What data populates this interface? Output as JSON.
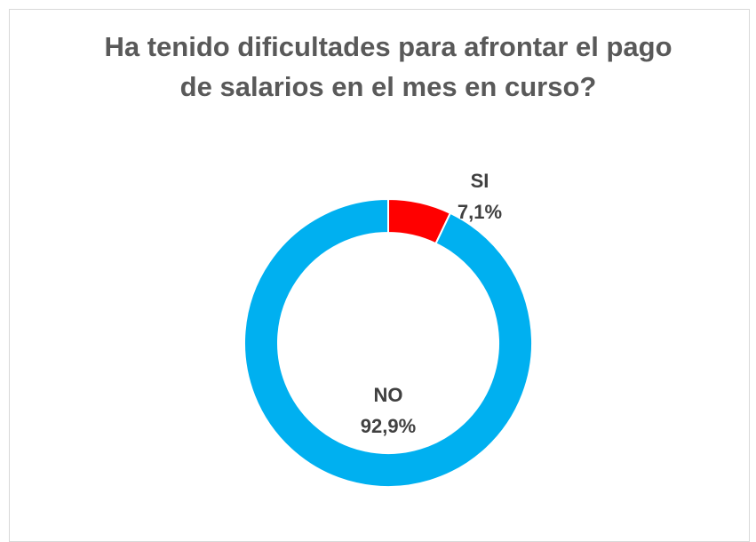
{
  "chart_data": {
    "type": "donut",
    "title": "Ha tenido dificultades para afrontar el pago de salarios en el mes en curso?",
    "categories": [
      "SI",
      "NO"
    ],
    "values": [
      7.1,
      92.9
    ],
    "value_labels": [
      "7,1%",
      "92,9%"
    ],
    "colors": [
      "#ff0000",
      "#00b0f0"
    ]
  }
}
